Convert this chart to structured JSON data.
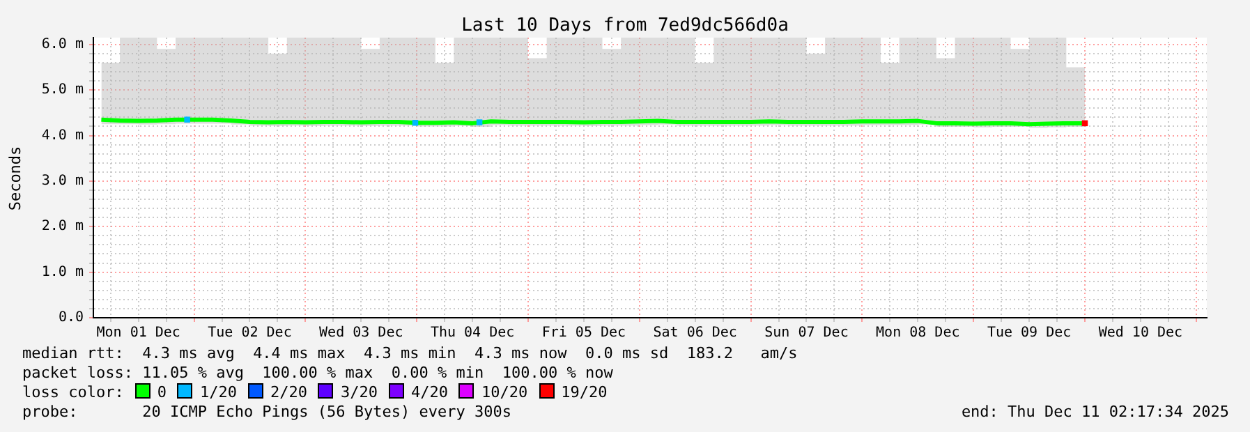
{
  "chart_data": {
    "type": "line",
    "title": "Last 10 Days from 7ed9dc566d0a",
    "ylabel": "Seconds",
    "legend": "bottom",
    "legend_title": "loss color:",
    "grid": true,
    "x": [
      "2025-12-01T04:00",
      "2025-12-01T08:00",
      "2025-12-01T12:00",
      "2025-12-01T16:00",
      "2025-12-01T20:00",
      "2025-12-02T00:00",
      "2025-12-02T04:00",
      "2025-12-02T08:00",
      "2025-12-02T12:00",
      "2025-12-02T16:00",
      "2025-12-02T20:00",
      "2025-12-03T00:00",
      "2025-12-03T04:00",
      "2025-12-03T08:00",
      "2025-12-03T12:00",
      "2025-12-03T16:00",
      "2025-12-03T20:00",
      "2025-12-04T00:00",
      "2025-12-04T04:00",
      "2025-12-04T08:00",
      "2025-12-04T12:00",
      "2025-12-04T16:00",
      "2025-12-04T20:00",
      "2025-12-05T00:00",
      "2025-12-05T04:00",
      "2025-12-05T08:00",
      "2025-12-05T12:00",
      "2025-12-05T16:00",
      "2025-12-05T20:00",
      "2025-12-06T00:00",
      "2025-12-06T04:00",
      "2025-12-06T08:00",
      "2025-12-06T12:00",
      "2025-12-06T16:00",
      "2025-12-06T20:00",
      "2025-12-07T00:00",
      "2025-12-07T04:00",
      "2025-12-07T08:00",
      "2025-12-07T12:00",
      "2025-12-07T16:00",
      "2025-12-07T20:00",
      "2025-12-08T00:00",
      "2025-12-08T04:00",
      "2025-12-08T08:00",
      "2025-12-08T12:00",
      "2025-12-08T16:00",
      "2025-12-08T20:00",
      "2025-12-09T00:00",
      "2025-12-09T04:00",
      "2025-12-09T08:00",
      "2025-12-09T12:00",
      "2025-12-09T16:00",
      "2025-12-09T20:00",
      "2025-12-10T00:00"
    ],
    "xlim": [
      "2025-12-01T02:17",
      "2025-12-11T02:17"
    ],
    "xticks": [
      {
        "value": "2025-12-01T06:00",
        "label": null
      },
      {
        "value": "2025-12-01T12:00",
        "label": "Mon 01 Dec"
      },
      {
        "value": "2025-12-01T18:00",
        "label": null
      },
      {
        "value": "2025-12-02T00:00",
        "label": null
      },
      {
        "value": "2025-12-02T06:00",
        "label": null
      },
      {
        "value": "2025-12-02T12:00",
        "label": "Tue 02 Dec"
      },
      {
        "value": "2025-12-02T18:00",
        "label": null
      },
      {
        "value": "2025-12-03T00:00",
        "label": null
      },
      {
        "value": "2025-12-03T06:00",
        "label": null
      },
      {
        "value": "2025-12-03T12:00",
        "label": "Wed 03 Dec"
      },
      {
        "value": "2025-12-03T18:00",
        "label": null
      },
      {
        "value": "2025-12-04T00:00",
        "label": null
      },
      {
        "value": "2025-12-04T06:00",
        "label": null
      },
      {
        "value": "2025-12-04T12:00",
        "label": "Thu 04 Dec"
      },
      {
        "value": "2025-12-04T18:00",
        "label": null
      },
      {
        "value": "2025-12-05T00:00",
        "label": null
      },
      {
        "value": "2025-12-05T06:00",
        "label": null
      },
      {
        "value": "2025-12-05T12:00",
        "label": "Fri 05 Dec"
      },
      {
        "value": "2025-12-05T18:00",
        "label": null
      },
      {
        "value": "2025-12-06T00:00",
        "label": null
      },
      {
        "value": "2025-12-06T06:00",
        "label": null
      },
      {
        "value": "2025-12-06T12:00",
        "label": "Sat 06 Dec"
      },
      {
        "value": "2025-12-06T18:00",
        "label": null
      },
      {
        "value": "2025-12-07T00:00",
        "label": null
      },
      {
        "value": "2025-12-07T06:00",
        "label": null
      },
      {
        "value": "2025-12-07T12:00",
        "label": "Sun 07 Dec"
      },
      {
        "value": "2025-12-07T18:00",
        "label": null
      },
      {
        "value": "2025-12-08T00:00",
        "label": null
      },
      {
        "value": "2025-12-08T06:00",
        "label": null
      },
      {
        "value": "2025-12-08T12:00",
        "label": "Mon 08 Dec"
      },
      {
        "value": "2025-12-08T18:00",
        "label": null
      },
      {
        "value": "2025-12-09T00:00",
        "label": null
      },
      {
        "value": "2025-12-09T06:00",
        "label": null
      },
      {
        "value": "2025-12-09T12:00",
        "label": "Tue 09 Dec"
      },
      {
        "value": "2025-12-09T18:00",
        "label": null
      },
      {
        "value": "2025-12-10T00:00",
        "label": null
      },
      {
        "value": "2025-12-10T06:00",
        "label": null
      },
      {
        "value": "2025-12-10T12:00",
        "label": "Wed 10 Dec"
      },
      {
        "value": "2025-12-10T18:00",
        "label": null
      },
      {
        "value": "2025-12-11T00:00",
        "label": null
      }
    ],
    "ylim": [
      0,
      6.15
    ],
    "yticks": [
      {
        "value": 0,
        "label": "0.0"
      },
      {
        "value": 0.2,
        "label": null
      },
      {
        "value": 0.4,
        "label": null
      },
      {
        "value": 0.6,
        "label": null
      },
      {
        "value": 0.8,
        "label": null
      },
      {
        "value": 1,
        "label": "1.0 m"
      },
      {
        "value": 1.2,
        "label": null
      },
      {
        "value": 1.4,
        "label": null
      },
      {
        "value": 1.6,
        "label": null
      },
      {
        "value": 1.8,
        "label": null
      },
      {
        "value": 2,
        "label": "2.0 m"
      },
      {
        "value": 2.2,
        "label": null
      },
      {
        "value": 2.4,
        "label": null
      },
      {
        "value": 2.6,
        "label": null
      },
      {
        "value": 2.8,
        "label": null
      },
      {
        "value": 3,
        "label": "3.0 m"
      },
      {
        "value": 3.2,
        "label": null
      },
      {
        "value": 3.4,
        "label": null
      },
      {
        "value": 3.6,
        "label": null
      },
      {
        "value": 3.8,
        "label": null
      },
      {
        "value": 4,
        "label": "4.0 m"
      },
      {
        "value": 4.2,
        "label": null
      },
      {
        "value": 4.4,
        "label": null
      },
      {
        "value": 4.6,
        "label": null
      },
      {
        "value": 4.8,
        "label": null
      },
      {
        "value": 5,
        "label": "5.0 m"
      },
      {
        "value": 5.2,
        "label": null
      },
      {
        "value": 5.4,
        "label": null
      },
      {
        "value": 5.6,
        "label": null
      },
      {
        "value": 5.8,
        "label": null
      },
      {
        "value": 6,
        "label": "6.0 m"
      }
    ],
    "series": [
      {
        "name": "0",
        "color": "#00ff00",
        "values": [
          4.35,
          4.33,
          4.32,
          4.33,
          4.35,
          4.35,
          4.35,
          4.33,
          4.3,
          4.29,
          4.3,
          4.29,
          4.3,
          4.3,
          4.29,
          4.3,
          4.3,
          4.28,
          4.28,
          4.29,
          4.27,
          4.31,
          4.3,
          4.3,
          4.3,
          4.3,
          4.29,
          4.3,
          4.3,
          4.31,
          4.32,
          4.3,
          4.3,
          4.3,
          4.3,
          4.3,
          4.31,
          4.3,
          4.3,
          4.3,
          4.3,
          4.31,
          4.31,
          4.31,
          4.32,
          4.27,
          4.27,
          4.26,
          4.27,
          4.27,
          4.25,
          4.26,
          4.27,
          4.27
        ],
        "lower": [
          4.25,
          4.25,
          4.24,
          4.25,
          4.26,
          4.26,
          4.26,
          4.24,
          4.22,
          4.21,
          4.22,
          4.21,
          4.22,
          4.22,
          4.21,
          4.22,
          4.22,
          4.2,
          4.2,
          4.21,
          4.19,
          4.23,
          4.22,
          4.22,
          4.22,
          4.22,
          4.21,
          4.22,
          4.22,
          4.23,
          4.24,
          4.22,
          4.22,
          4.22,
          4.22,
          4.22,
          4.23,
          4.22,
          4.22,
          4.22,
          4.22,
          4.23,
          4.23,
          4.23,
          4.24,
          4.19,
          4.19,
          4.18,
          4.19,
          4.19,
          4.17,
          4.18,
          4.19,
          4.19
        ],
        "upper": [
          5.6,
          6.15,
          6.15,
          5.9,
          6.15,
          6.15,
          6.15,
          6.15,
          6.15,
          5.8,
          6.15,
          6.15,
          6.15,
          6.15,
          5.9,
          6.15,
          6.15,
          6.15,
          5.6,
          6.15,
          6.15,
          6.15,
          6.15,
          5.7,
          6.15,
          6.15,
          6.15,
          5.9,
          6.15,
          6.15,
          6.15,
          6.15,
          5.6,
          6.15,
          6.15,
          6.15,
          6.15,
          6.15,
          5.8,
          6.15,
          6.15,
          6.15,
          5.6,
          6.15,
          6.15,
          5.7,
          6.15,
          6.15,
          6.15,
          5.9,
          6.15,
          6.15,
          5.5,
          6.15
        ]
      },
      {
        "name": "1/20",
        "type": "scatter",
        "marker": "square",
        "color": "#00b8ff",
        "x": [
          "2025-12-01T22:30",
          "2025-12-03T23:40",
          "2025-12-04T13:30"
        ],
        "values": [
          4.35,
          4.28,
          4.29
        ]
      },
      {
        "name": "2/20",
        "color": "#0059ff",
        "values": [
          null,
          null,
          null,
          null,
          null,
          null,
          null,
          null,
          null,
          null,
          null,
          null,
          null,
          null,
          null,
          null,
          null,
          null,
          null,
          null,
          null,
          null,
          null,
          null,
          null,
          null,
          null,
          null,
          null,
          null,
          null,
          null,
          null,
          null,
          null,
          null,
          null,
          null,
          null,
          null,
          null,
          null,
          null,
          null,
          null,
          null,
          null,
          null,
          null,
          null,
          null,
          null,
          null,
          null
        ]
      },
      {
        "name": "3/20",
        "color": "#5e00ff",
        "values": [
          null,
          null,
          null,
          null,
          null,
          null,
          null,
          null,
          null,
          null,
          null,
          null,
          null,
          null,
          null,
          null,
          null,
          null,
          null,
          null,
          null,
          null,
          null,
          null,
          null,
          null,
          null,
          null,
          null,
          null,
          null,
          null,
          null,
          null,
          null,
          null,
          null,
          null,
          null,
          null,
          null,
          null,
          null,
          null,
          null,
          null,
          null,
          null,
          null,
          null,
          null,
          null,
          null,
          null
        ]
      },
      {
        "name": "4/20",
        "color": "#7e00ff",
        "values": [
          null,
          null,
          null,
          null,
          null,
          null,
          null,
          null,
          null,
          null,
          null,
          null,
          null,
          null,
          null,
          null,
          null,
          null,
          null,
          null,
          null,
          null,
          null,
          null,
          null,
          null,
          null,
          null,
          null,
          null,
          null,
          null,
          null,
          null,
          null,
          null,
          null,
          null,
          null,
          null,
          null,
          null,
          null,
          null,
          null,
          null,
          null,
          null,
          null,
          null,
          null,
          null,
          null,
          null
        ]
      },
      {
        "name": "10/20",
        "color": "#dd00ff",
        "values": [
          null,
          null,
          null,
          null,
          null,
          null,
          null,
          null,
          null,
          null,
          null,
          null,
          null,
          null,
          null,
          null,
          null,
          null,
          null,
          null,
          null,
          null,
          null,
          null,
          null,
          null,
          null,
          null,
          null,
          null,
          null,
          null,
          null,
          null,
          null,
          null,
          null,
          null,
          null,
          null,
          null,
          null,
          null,
          null,
          null,
          null,
          null,
          null,
          null,
          null,
          null,
          null,
          null,
          null
        ]
      },
      {
        "name": "19/20",
        "type": "scatter",
        "marker": "square",
        "color": "#ff0000",
        "x": [
          "2025-12-10T00:00"
        ],
        "values": [
          4.27
        ]
      }
    ],
    "annotations": [
      "median rtt:  4.3 ms avg  4.4 ms max  4.3 ms min  4.3 ms now  0.0 ms sd  183.2   am/s",
      "packet loss: 11.05 % avg  100.00 % max  0.00 % min  100.00 % now",
      "probe:       20 ICMP Echo Pings (56 Bytes) every 300s",
      "end: Thu Dec 11 02:17:34 2025"
    ]
  }
}
